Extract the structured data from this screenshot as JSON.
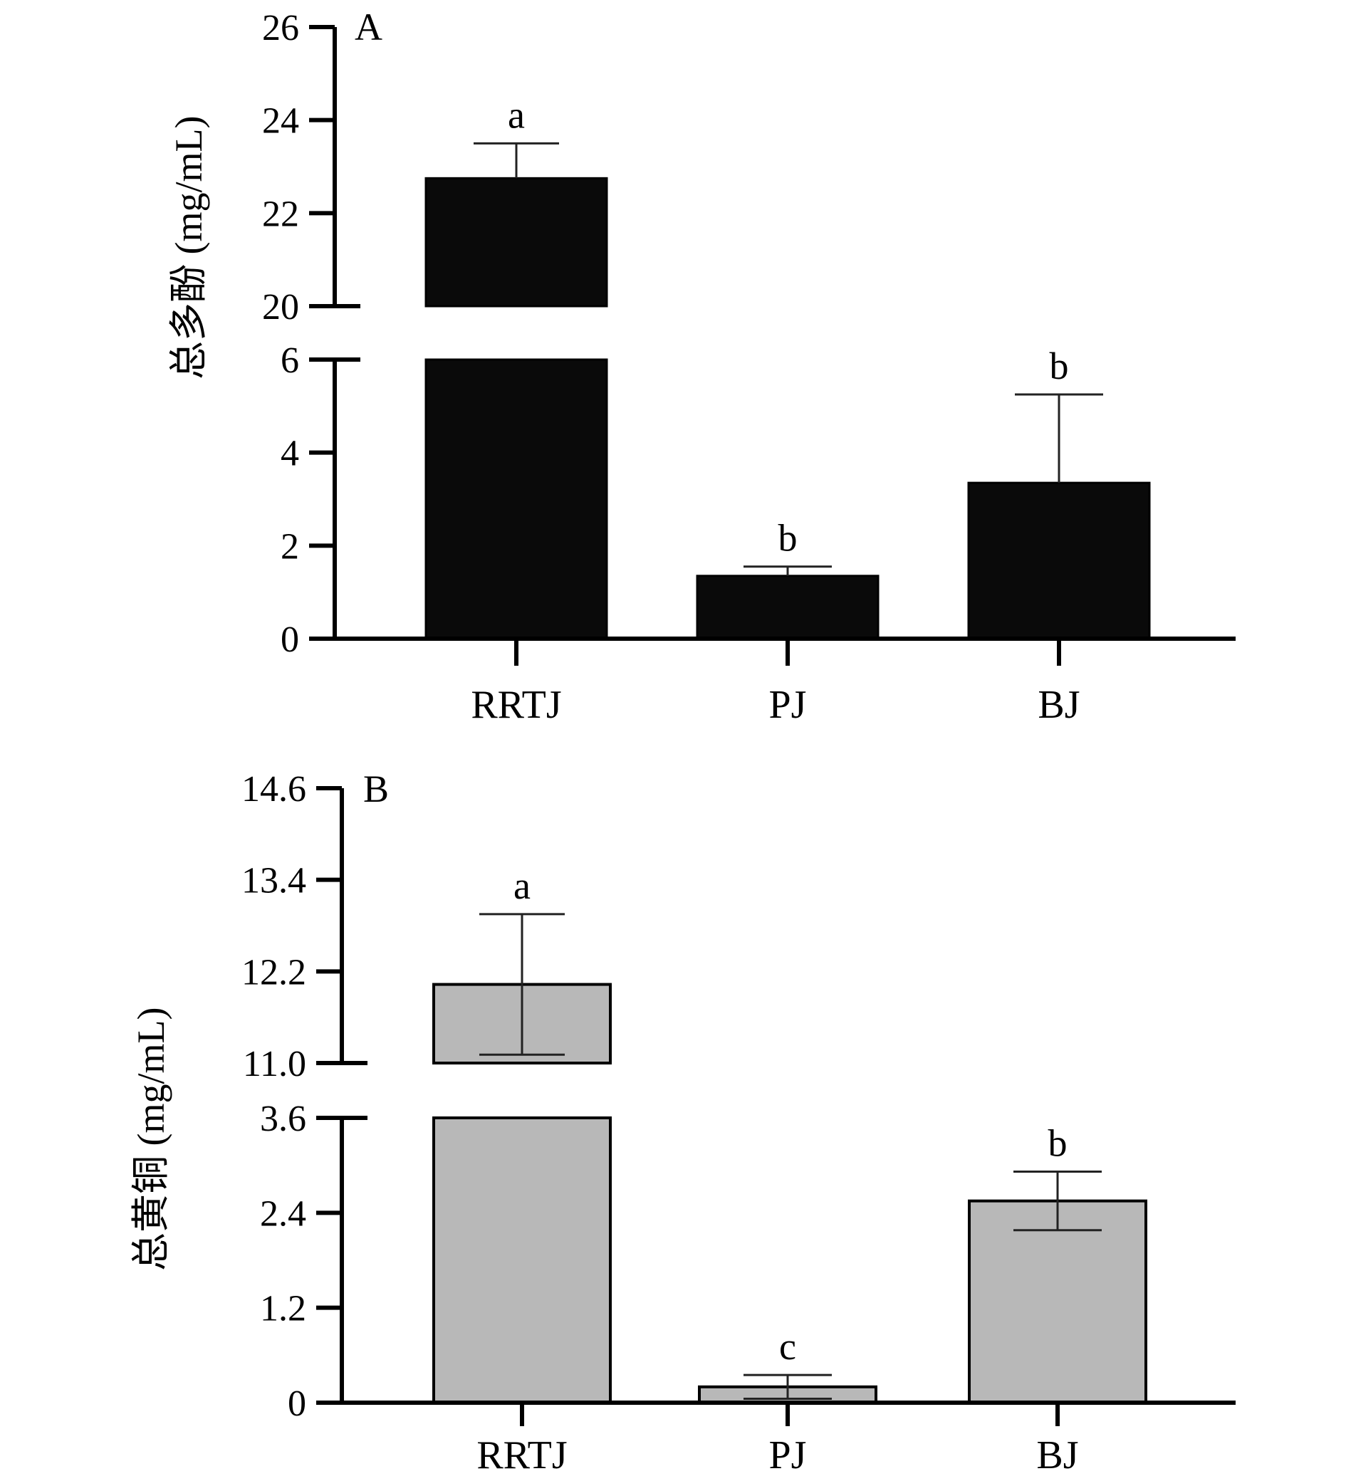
{
  "chart_data": [
    {
      "panel": "A",
      "type": "bar",
      "ylabel": "总多酚 (mg/mL)",
      "categories": [
        "RRTJ",
        "PJ",
        "BJ"
      ],
      "values": [
        22.75,
        1.35,
        3.35
      ],
      "errors": [
        0.75,
        0.2,
        1.9
      ],
      "significance": [
        "a",
        "b",
        "b"
      ],
      "bar_color": "#0a0a0a",
      "axis_break": {
        "lower": [
          0,
          6
        ],
        "upper": [
          20,
          26
        ]
      },
      "ticks_lower": [
        0,
        2,
        4,
        6
      ],
      "ticks_upper": [
        20,
        22,
        24,
        26
      ],
      "tick_labels_lower": [
        "0",
        "2",
        "4",
        "6"
      ],
      "tick_labels_upper": [
        "20",
        "22",
        "24",
        "26"
      ],
      "error_direction": "up"
    },
    {
      "panel": "B",
      "type": "bar",
      "ylabel": "总黄铜 (mg/mL)",
      "categories": [
        "RRTJ",
        "PJ",
        "BJ"
      ],
      "values": [
        12.03,
        0.2,
        2.55
      ],
      "errors": [
        0.92,
        0.15,
        0.37
      ],
      "significance": [
        "a",
        "c",
        "b"
      ],
      "bar_color": "#b8b8b8",
      "axis_break": {
        "lower": [
          0,
          3.6
        ],
        "upper": [
          11.0,
          14.6
        ]
      },
      "ticks_lower": [
        0,
        1.2,
        2.4,
        3.6
      ],
      "ticks_upper": [
        11.0,
        12.2,
        13.4,
        14.6
      ],
      "tick_labels_lower": [
        "0",
        "1.2",
        "2.4",
        "3.6"
      ],
      "tick_labels_upper": [
        "11.0",
        "12.2",
        "13.4",
        "14.6"
      ],
      "error_direction": "both"
    }
  ]
}
